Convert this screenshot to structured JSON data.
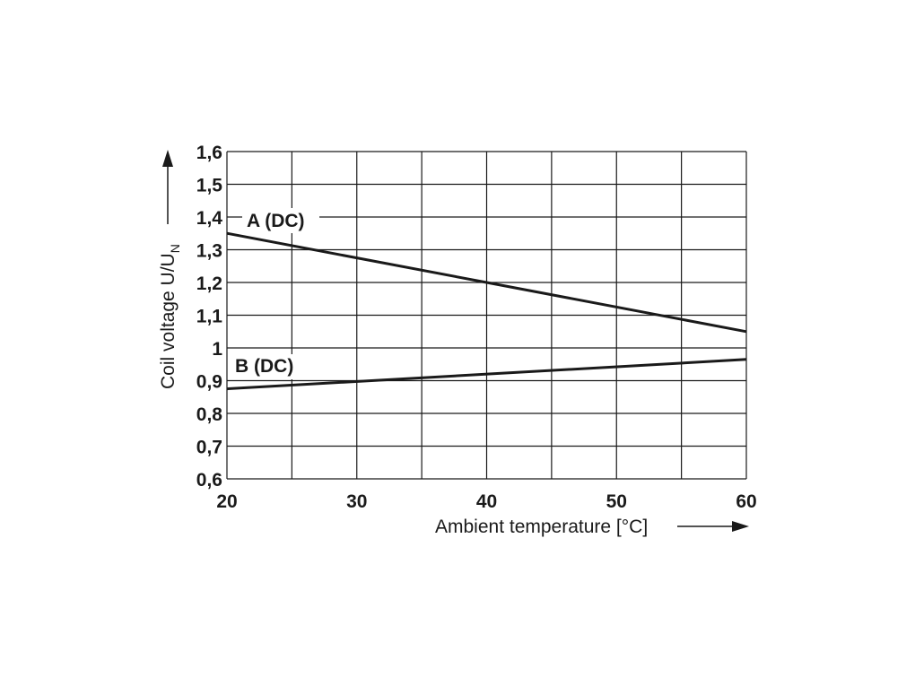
{
  "chart_data": {
    "type": "line",
    "title": "",
    "xlabel": "Ambient temperature [°C]",
    "ylabel": "Coil voltage U/U",
    "ylabel_subscript": "N",
    "xlim": [
      20,
      60
    ],
    "ylim": [
      0.6,
      1.6
    ],
    "x_grid_step": 5,
    "y_grid_step": 0.1,
    "x_ticks": [
      20,
      30,
      40,
      50,
      60
    ],
    "x_tick_labels": [
      "20",
      "30",
      "40",
      "50",
      "60"
    ],
    "y_ticks": [
      0.6,
      0.7,
      0.8,
      0.9,
      1.0,
      1.1,
      1.2,
      1.3,
      1.4,
      1.5,
      1.6
    ],
    "y_tick_labels": [
      "0,6",
      "0,7",
      "0,8",
      "0,9",
      "1",
      "1,1",
      "1,2",
      "1,3",
      "1,4",
      "1,5",
      "1,6"
    ],
    "grid": true,
    "legend": "none",
    "series": [
      {
        "name": "A (DC)",
        "x": [
          20,
          40,
          60
        ],
        "y": [
          1.35,
          1.2,
          1.05
        ]
      },
      {
        "name": "B (DC)",
        "x": [
          20,
          60
        ],
        "y": [
          0.875,
          0.965
        ]
      }
    ]
  }
}
